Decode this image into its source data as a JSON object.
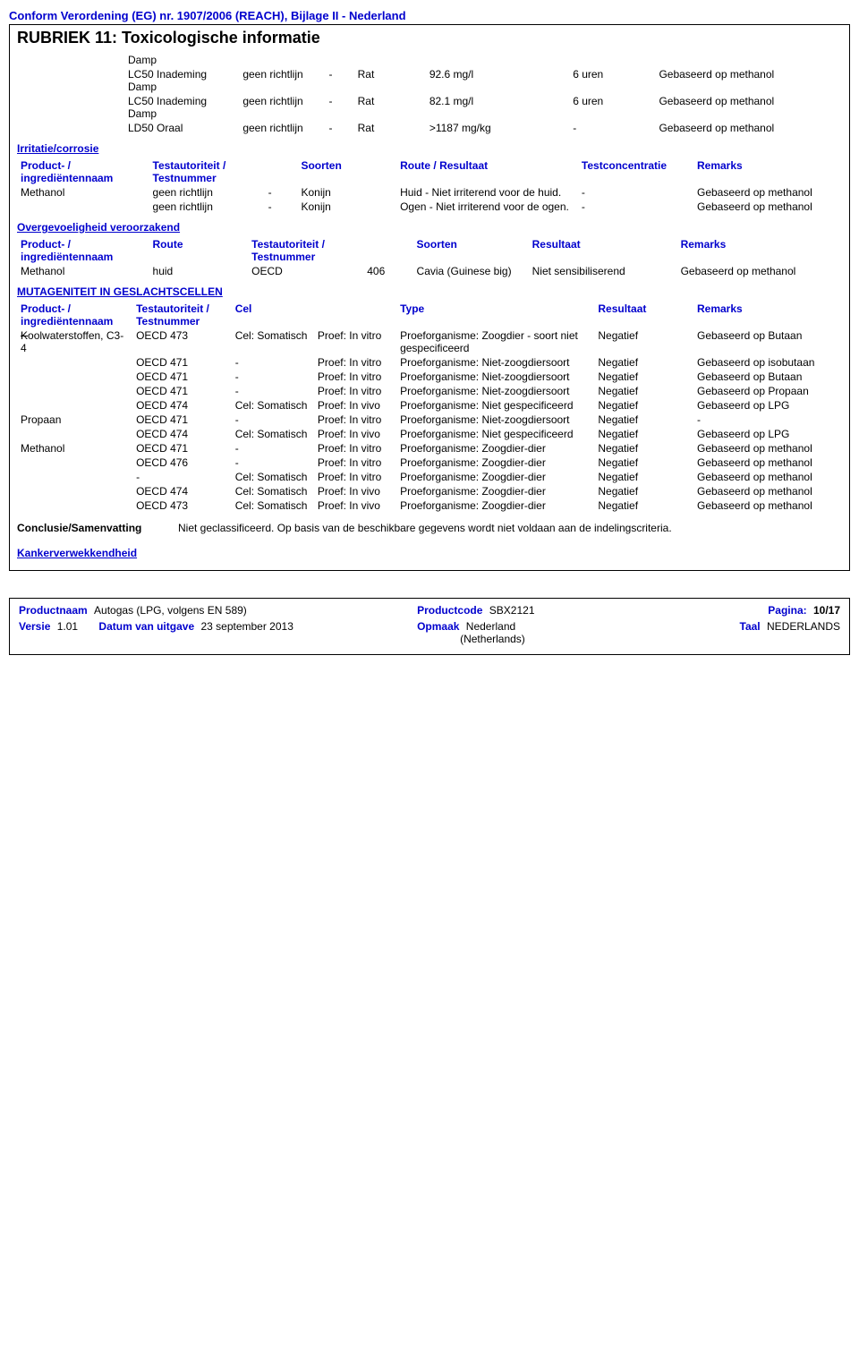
{
  "header": {
    "conformity": "Conform Verordening (EG) nr. 1907/2006 (REACH), Bijlage II - Nederland",
    "rubriek": "RUBRIEK 11: Toxicologische informatie"
  },
  "tox_table": {
    "rows": [
      {
        "c1": "Damp",
        "c2": "",
        "c3": "",
        "c4": "",
        "c5": "",
        "c6": "",
        "c7": ""
      },
      {
        "c1": "LC50 Inademing Damp",
        "c2": "geen richtlijn",
        "c3": "-",
        "c4": "Rat",
        "c5": "92.6 mg/l",
        "c6": "6 uren",
        "c7": "Gebaseerd op methanol"
      },
      {
        "c1": "LC50 Inademing Damp",
        "c2": "geen richtlijn",
        "c3": "-",
        "c4": "Rat",
        "c5": "82.1 mg/l",
        "c6": "6 uren",
        "c7": "Gebaseerd op methanol"
      },
      {
        "c1": "LD50 Oraal",
        "c2": "geen richtlijn",
        "c3": "-",
        "c4": "Rat",
        "c5": ">1187 mg/kg",
        "c6": "-",
        "c7": "Gebaseerd op methanol"
      }
    ]
  },
  "irritatie": {
    "heading": "Irritatie/corrosie",
    "headers": [
      "Product- / ingrediëntennaam",
      "Testautoriteit / Testnummer",
      "",
      "Soorten",
      "Route / Resultaat",
      "Testconcentratie",
      "Remarks"
    ],
    "rows": [
      {
        "c1": "Methanol",
        "c2": "geen richtlijn",
        "c3": "-",
        "c4": "Konijn",
        "c5": "Huid - Niet irriterend voor de huid.",
        "c6": "-",
        "c7": "Gebaseerd op methanol"
      },
      {
        "c1": "",
        "c2": "geen richtlijn",
        "c3": "-",
        "c4": "Konijn",
        "c5": "Ogen - Niet irriterend voor de ogen.",
        "c6": "-",
        "c7": "Gebaseerd op methanol"
      }
    ]
  },
  "overgevoeligheid": {
    "heading": "Overgevoeligheid veroorzakend",
    "headers": [
      "Product- / ingrediëntennaam",
      "Route",
      "Testautoriteit / Testnummer",
      "",
      "Soorten",
      "Resultaat",
      "Remarks"
    ],
    "rows": [
      {
        "c1": "Methanol",
        "c2": "huid",
        "c3": "OECD",
        "c4": "406",
        "c5": "Cavia (Guinese big)",
        "c6": "Niet sensibiliserend",
        "c7": "Gebaseerd op methanol"
      }
    ]
  },
  "mutageniteit": {
    "heading": "MUTAGENITEIT IN GESLACHTSCELLEN",
    "headers": [
      "Product- / ingrediëntennaam",
      "Testautoriteit / Testnummer",
      "Cel",
      "",
      "Type",
      "Resultaat",
      "Remarks"
    ],
    "rows": [
      {
        "c1": "Koolwaterstoffen, C3-4",
        "c2": "OECD 473",
        "c3": "Cel: Somatisch",
        "c4": "Proef: In vitro",
        "c5": "Proeforganisme: Zoogdier - soort niet gespecificeerd",
        "c6": "Negatief",
        "c7": "Gebaseerd op Butaan"
      },
      {
        "c1": "",
        "c2": "OECD 471",
        "c3": "-",
        "c4": "Proef: In vitro",
        "c5": "Proeforganisme: Niet-zoogdiersoort",
        "c6": "Negatief",
        "c7": "Gebaseerd op isobutaan"
      },
      {
        "c1": "",
        "c2": "OECD 471",
        "c3": "-",
        "c4": "Proef: In vitro",
        "c5": "Proeforganisme: Niet-zoogdiersoort",
        "c6": "Negatief",
        "c7": "Gebaseerd op Butaan"
      },
      {
        "c1": "",
        "c2": "OECD 471",
        "c3": "-",
        "c4": "Proef: In vitro",
        "c5": "Proeforganisme: Niet-zoogdiersoort",
        "c6": "Negatief",
        "c7": "Gebaseerd op Propaan"
      },
      {
        "c1": "",
        "c2": "OECD 474",
        "c3": "Cel: Somatisch",
        "c4": "Proef: In vivo",
        "c5": "Proeforganisme: Niet gespecificeerd",
        "c6": "Negatief",
        "c7": "Gebaseerd op LPG"
      },
      {
        "c1": "Propaan",
        "c2": "OECD 471",
        "c3": "-",
        "c4": "Proef: In vitro",
        "c5": "Proeforganisme: Niet-zoogdiersoort",
        "c6": "Negatief",
        "c7": "-"
      },
      {
        "c1": "",
        "c2": "OECD 474",
        "c3": "Cel: Somatisch",
        "c4": "Proef: In vivo",
        "c5": "Proeforganisme: Niet gespecificeerd",
        "c6": "Negatief",
        "c7": "Gebaseerd op LPG"
      },
      {
        "c1": "Methanol",
        "c2": "OECD 471",
        "c3": "-",
        "c4": "Proef: In vitro",
        "c5": "Proeforganisme: Zoogdier-dier",
        "c6": "Negatief",
        "c7": "Gebaseerd op methanol"
      },
      {
        "c1": "",
        "c2": "OECD 476",
        "c3": "-",
        "c4": "Proef: In vitro",
        "c5": "Proeforganisme: Zoogdier-dier",
        "c6": "Negatief",
        "c7": "Gebaseerd op methanol"
      },
      {
        "c1": "",
        "c2": "-",
        "c3": "Cel: Somatisch",
        "c4": "Proef: In vitro",
        "c5": "Proeforganisme: Zoogdier-dier",
        "c6": "Negatief",
        "c7": "Gebaseerd op methanol"
      },
      {
        "c1": "",
        "c2": "OECD 474",
        "c3": "Cel: Somatisch",
        "c4": "Proef: In vivo",
        "c5": "Proeforganisme: Zoogdier-dier",
        "c6": "Negatief",
        "c7": "Gebaseerd op methanol"
      },
      {
        "c1": "",
        "c2": "OECD 473",
        "c3": "Cel: Somatisch",
        "c4": "Proef: In vivo",
        "c5": "Proeforganisme: Zoogdier-dier",
        "c6": "Negatief",
        "c7": "Gebaseerd op methanol"
      }
    ]
  },
  "conclusie": {
    "label": "Conclusie/Samenvatting",
    "text": "Niet geclassificeerd. Op basis van de beschikbare gegevens wordt niet voldaan aan de indelingscriteria."
  },
  "kanker": "Kankerverwekkendheid",
  "footer": {
    "productnaam_label": "Productnaam",
    "productnaam": "Autogas (LPG, volgens EN 589)",
    "productcode_label": "Productcode",
    "productcode": "SBX2121",
    "pagina_label": "Pagina:",
    "pagina": "10/17",
    "versie_label": "Versie",
    "versie": "1.01",
    "datum_label": "Datum van uitgave",
    "datum": "23 september 2013",
    "opmaak_label": "Opmaak",
    "opmaak": "Nederland",
    "opmaak_sub": "(Netherlands)",
    "taal_label": "Taal",
    "taal": "NEDERLANDS"
  },
  "colwidths": {
    "tox": [
      "16%",
      "12%",
      "4%",
      "10%",
      "20%",
      "12%",
      "26%"
    ],
    "irr": [
      "16%",
      "14%",
      "4%",
      "12%",
      "22%",
      "14%",
      "18%"
    ],
    "over": [
      "16%",
      "12%",
      "14%",
      "6%",
      "14%",
      "18%",
      "20%"
    ],
    "muta": [
      "14%",
      "12%",
      "10%",
      "10%",
      "24%",
      "12%",
      "18%"
    ]
  }
}
